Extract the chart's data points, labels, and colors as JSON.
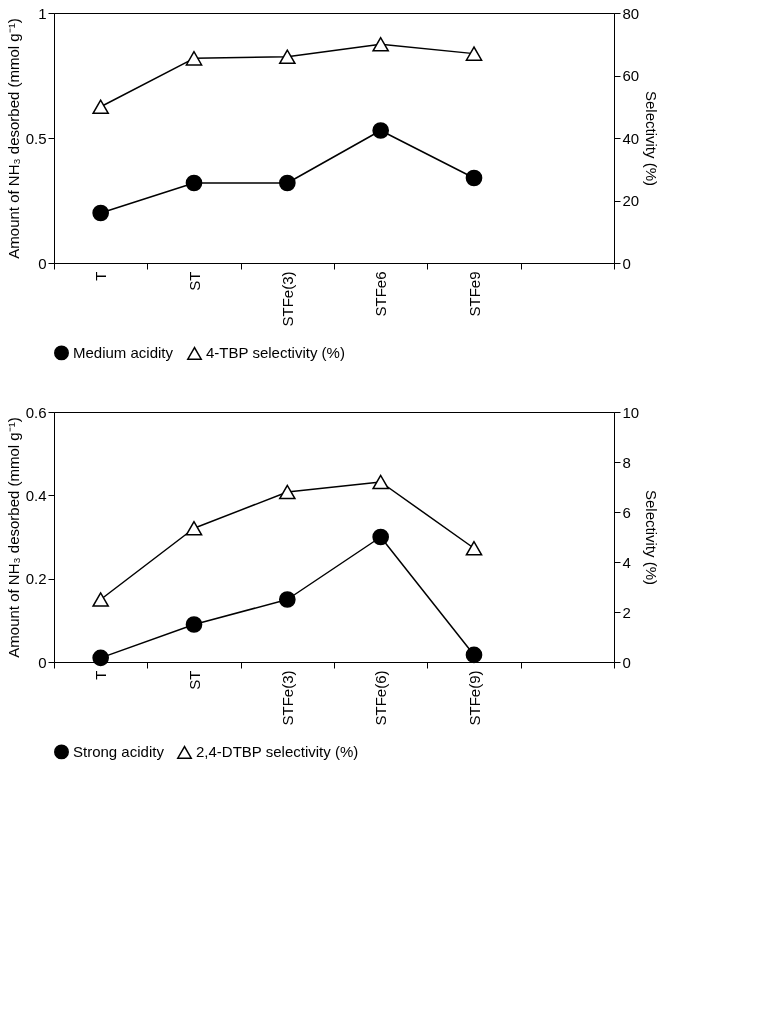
{
  "chart_data": [
    {
      "type": "line",
      "ylabel": "Amount of NH₃ desorbed (mmol g⁻¹)",
      "y2label": "Selectivity (%)",
      "categories": [
        "T",
        "ST",
        "STFe(3)",
        "STFe6",
        "STFe9",
        null
      ],
      "series": [
        {
          "name": "Medium acidity",
          "color": "#000000",
          "marker": "circle",
          "values": [
            0.2,
            0.32,
            0.32,
            0.53,
            0.34,
            null
          ]
        },
        {
          "name": "4-TBP selectivity (%)",
          "color": "#000000",
          "marker": "triangle",
          "axis": "y2",
          "values": [
            50,
            65.5,
            66,
            70,
            67,
            null
          ]
        }
      ],
      "ylim": [
        0,
        1
      ],
      "yticks": [
        0,
        0.5,
        1
      ],
      "y2lim": [
        0,
        80
      ],
      "y2ticks": [
        0,
        20,
        40,
        60,
        80
      ],
      "legend": "bottom",
      "grid": false
    },
    {
      "type": "line",
      "ylabel": "Amount of NH₃ desorbed (mmol g⁻¹)",
      "y2label": "Selectivity (%)",
      "categories": [
        "T",
        "ST",
        "STFe(3)",
        "STFe(6)",
        "STFe(9)",
        null
      ],
      "series": [
        {
          "name": "Strong acidity",
          "color": "#000000",
          "marker": "circle",
          "values": [
            0.01,
            0.09,
            0.15,
            0.3,
            0.017,
            null
          ]
        },
        {
          "name": "2,4-DTBP selectivity (%)",
          "color": "#000000",
          "marker": "triangle",
          "axis": "y2",
          "values": [
            2.5,
            5.35,
            6.8,
            7.2,
            4.55,
            null
          ]
        }
      ],
      "ylim": [
        0,
        0.6
      ],
      "yticks": [
        0,
        0.2,
        0.4,
        0.6
      ],
      "y2lim": [
        0,
        10
      ],
      "y2ticks": [
        0,
        2,
        4,
        6,
        8,
        10
      ],
      "legend": "bottom",
      "grid": false
    }
  ]
}
